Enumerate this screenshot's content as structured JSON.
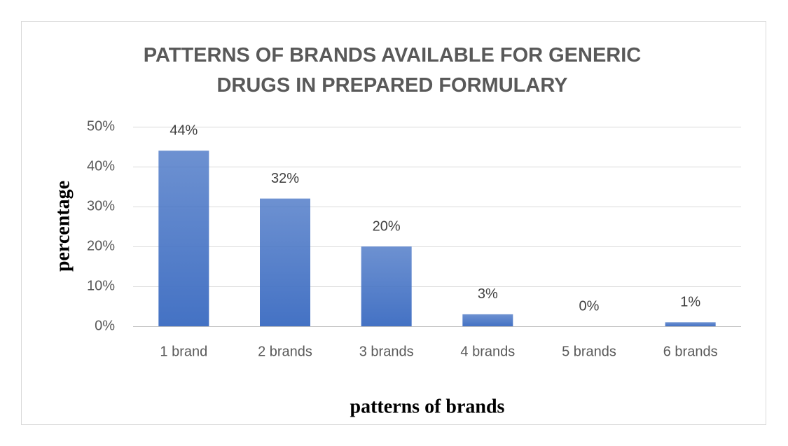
{
  "chart_data": {
    "type": "bar",
    "title": "PATTERNS OF BRANDS AVAILABLE FOR GENERIC DRUGS IN PREPARED FORMULARY",
    "x_label": "patterns of brands",
    "y_label": "percentage",
    "categories": [
      "1 brand",
      "2 brands",
      "3 brands",
      "4 brands",
      "5 brands",
      "6 brands"
    ],
    "values": [
      44,
      32,
      20,
      3,
      0,
      1
    ],
    "value_labels": [
      "44%",
      "32%",
      "20%",
      "3%",
      "0%",
      "1%"
    ],
    "color": "#4472c4",
    "ylim": [
      0,
      50
    ],
    "yticks": [
      {
        "value": 0,
        "label": "0%"
      },
      {
        "value": 10,
        "label": "10%"
      },
      {
        "value": 20,
        "label": "20%"
      },
      {
        "value": 30,
        "label": "30%"
      },
      {
        "value": 40,
        "label": "40%"
      },
      {
        "value": 50,
        "label": "50%"
      }
    ],
    "grid": true
  }
}
